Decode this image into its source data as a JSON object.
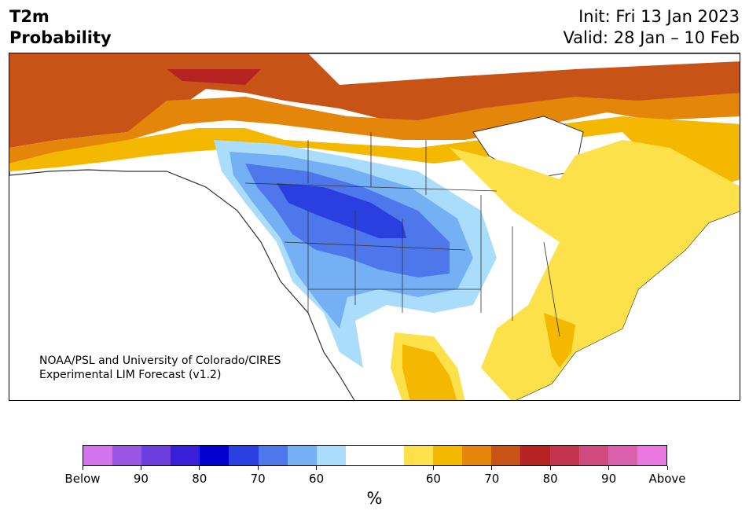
{
  "header": {
    "title_line1": "T2m",
    "title_line2": "Probability",
    "init": "Init: Fri 13 Jan 2023",
    "valid": "Valid: 28 Jan – 10 Feb"
  },
  "map": {
    "region": "North America",
    "credit_line1": "NOAA/PSL and University of Colorado/CIRES",
    "credit_line2": "Experimental LIM Forecast (v1.2)"
  },
  "colorbar": {
    "colors": [
      "#d474ec",
      "#9b55e4",
      "#6a3ddc",
      "#3a1fd9",
      "#0000cf",
      "#2a3fe0",
      "#4f77ec",
      "#76b0f4",
      "#aadcfb",
      "#ffffff",
      "#ffffff",
      "#fde14a",
      "#f5b800",
      "#e3860a",
      "#c75416",
      "#b42222",
      "#c3354e",
      "#cf4b7d",
      "#da5fac",
      "#e878e0"
    ],
    "labels": [
      "Below",
      "90",
      "80",
      "70",
      "60",
      "60",
      "70",
      "80",
      "90",
      "Above"
    ],
    "unit": "%"
  }
}
